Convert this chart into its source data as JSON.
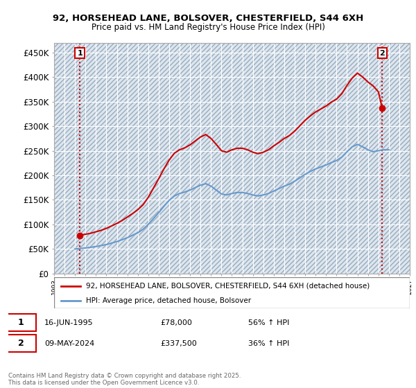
{
  "title_line1": "92, HORSEHEAD LANE, BOLSOVER, CHESTERFIELD, S44 6XH",
  "title_line2": "Price paid vs. HM Land Registry's House Price Index (HPI)",
  "ylim": [
    0,
    470000
  ],
  "yticks": [
    0,
    50000,
    100000,
    150000,
    200000,
    250000,
    300000,
    350000,
    400000,
    450000
  ],
  "ytick_labels": [
    "£0",
    "£50K",
    "£100K",
    "£150K",
    "£200K",
    "£250K",
    "£300K",
    "£350K",
    "£400K",
    "£450K"
  ],
  "hpi_color": "#6699cc",
  "price_color": "#cc0000",
  "background_color": "#dce6f1",
  "grid_color": "#ffffff",
  "legend_label_red": "92, HORSEHEAD LANE, BOLSOVER, CHESTERFIELD, S44 6XH (detached house)",
  "legend_label_blue": "HPI: Average price, detached house, Bolsover",
  "point1_date": "16-JUN-1995",
  "point1_price": "£78,000",
  "point1_hpi": "56% ↑ HPI",
  "point2_date": "09-MAY-2024",
  "point2_price": "£337,500",
  "point2_hpi": "36% ↑ HPI",
  "footnote": "Contains HM Land Registry data © Crown copyright and database right 2025.\nThis data is licensed under the Open Government Licence v3.0.",
  "sale1_year": 1995.46,
  "sale1_value": 78000,
  "sale2_year": 2024.36,
  "sale2_value": 337500,
  "xlim_left": 1993.0,
  "xlim_right": 2027.0,
  "hpi_years": [
    1995,
    1995.5,
    1996,
    1996.5,
    1997,
    1997.5,
    1998,
    1998.5,
    1999,
    1999.5,
    2000,
    2000.5,
    2001,
    2001.5,
    2002,
    2002.5,
    2003,
    2003.5,
    2004,
    2004.5,
    2005,
    2005.5,
    2006,
    2006.5,
    2007,
    2007.5,
    2008,
    2008.5,
    2009,
    2009.5,
    2010,
    2010.5,
    2011,
    2011.5,
    2012,
    2012.5,
    2013,
    2013.5,
    2014,
    2014.5,
    2015,
    2015.5,
    2016,
    2016.5,
    2017,
    2017.5,
    2018,
    2018.5,
    2019,
    2019.5,
    2020,
    2020.5,
    2021,
    2021.5,
    2022,
    2022.5,
    2023,
    2023.5,
    2024,
    2024.5,
    2025
  ],
  "hpi_values": [
    50000,
    51000,
    52000,
    53500,
    55000,
    57000,
    59000,
    62000,
    65000,
    69000,
    73000,
    78000,
    83000,
    90000,
    100000,
    112000,
    124000,
    137000,
    149000,
    158000,
    163000,
    166000,
    170000,
    175000,
    180000,
    183000,
    178000,
    170000,
    162000,
    160000,
    163000,
    165000,
    165000,
    163000,
    160000,
    158000,
    160000,
    163000,
    168000,
    173000,
    178000,
    182000,
    188000,
    195000,
    202000,
    208000,
    213000,
    217000,
    221000,
    226000,
    230000,
    237000,
    248000,
    258000,
    263000,
    258000,
    252000,
    248000,
    250000,
    252000,
    252000
  ],
  "red_years": [
    1995.46,
    1996,
    1996.5,
    1997,
    1997.5,
    1998,
    1998.5,
    1999,
    1999.5,
    2000,
    2000.5,
    2001,
    2001.5,
    2002,
    2002.5,
    2003,
    2003.5,
    2004,
    2004.5,
    2005,
    2005.5,
    2006,
    2006.5,
    2007,
    2007.5,
    2008,
    2008.5,
    2009,
    2009.5,
    2010,
    2010.5,
    2011,
    2011.5,
    2012,
    2012.5,
    2013,
    2013.5,
    2014,
    2014.5,
    2015,
    2015.5,
    2016,
    2016.5,
    2017,
    2017.5,
    2018,
    2018.5,
    2019,
    2019.5,
    2020,
    2020.5,
    2021,
    2021.5,
    2022,
    2022.5,
    2023,
    2023.5,
    2024,
    2024.36
  ],
  "red_values": [
    78000,
    80000,
    82000,
    85000,
    88000,
    92000,
    97000,
    102000,
    108000,
    115000,
    122000,
    130000,
    140000,
    155000,
    174000,
    193000,
    213000,
    231000,
    245000,
    252000,
    256000,
    262000,
    270000,
    278000,
    283000,
    275000,
    263000,
    250000,
    247000,
    252000,
    255000,
    255000,
    252000,
    247000,
    244000,
    247000,
    252000,
    260000,
    267000,
    275000,
    281000,
    290000,
    301000,
    312000,
    321000,
    329000,
    335000,
    341000,
    349000,
    355000,
    366000,
    383000,
    398000,
    408000,
    400000,
    390000,
    382000,
    370000,
    337500
  ]
}
